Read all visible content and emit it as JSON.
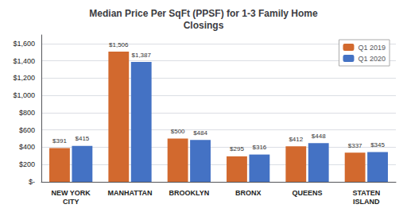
{
  "chart_data": {
    "type": "bar",
    "title": "Median Price Per SqFt (PPSF) for 1-3 Family Home\nClosings",
    "categories": [
      "NEW YORK\nCITY",
      "MANHATTAN",
      "BROOKLYN",
      "BRONX",
      "QUEENS",
      "STATEN\nISLAND"
    ],
    "series": [
      {
        "name": "Q1 2019",
        "color": "#D2692E",
        "values": [
          391,
          1506,
          500,
          295,
          412,
          337
        ],
        "value_labels": [
          "$391",
          "$1,506",
          "$500",
          "$295",
          "$412",
          "$337"
        ]
      },
      {
        "name": "Q1 2020",
        "color": "#4472C4",
        "values": [
          415,
          1387,
          484,
          316,
          448,
          345
        ],
        "value_labels": [
          "$415",
          "$1,387",
          "$484",
          "$316",
          "$448",
          "$345"
        ]
      }
    ],
    "ylim": [
      0,
      1700
    ],
    "yticks": [
      {
        "value": 0,
        "label": "$-"
      },
      {
        "value": 200,
        "label": "$200"
      },
      {
        "value": 400,
        "label": "$400"
      },
      {
        "value": 600,
        "label": "$600"
      },
      {
        "value": 800,
        "label": "$800"
      },
      {
        "value": 1000,
        "label": "$1,000"
      },
      {
        "value": 1200,
        "label": "$1,200"
      },
      {
        "value": 1400,
        "label": "$1,400"
      },
      {
        "value": 1600,
        "label": "$1,600"
      }
    ],
    "grid": true,
    "legend": "upper right",
    "data_labels": true
  }
}
